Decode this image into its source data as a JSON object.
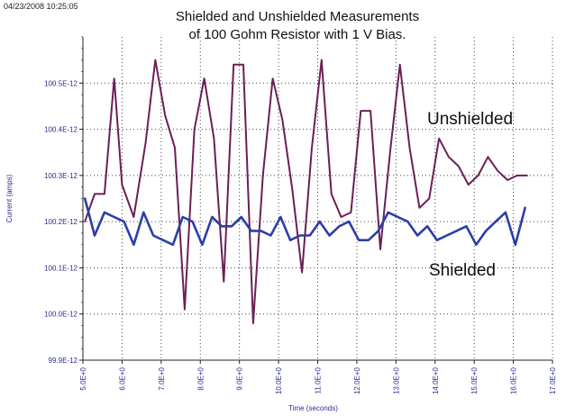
{
  "timestamp": "04/23/2008 10:25:05",
  "title_line1": "Shielded and Unshielded Measurements",
  "title_line2": "of 100 Gohm Resistor with 1 V Bias.",
  "colors": {
    "unshielded": "#6b1f57",
    "shielded": "#2c3ea8",
    "axis_text": "#2a2a90",
    "grid": "#444444"
  },
  "chart_data": {
    "type": "line",
    "title": "Shielded and Unshielded Measurements of 100 Gohm Resistor with 1 V Bias.",
    "xlabel": "Time (seconds)",
    "ylabel": "Current (amps)",
    "xlim": [
      5.0,
      17.0
    ],
    "ylim": [
      9.99e-11,
      1.006e-10
    ],
    "x_ticks": [
      5,
      6,
      7,
      8,
      9,
      10,
      11,
      12,
      13,
      14,
      15,
      16,
      17
    ],
    "x_tick_labels": [
      "5.0E+0",
      "6.0E+0",
      "7.0E+0",
      "8.0E+0",
      "9.0E+0",
      "10.0E+0",
      "11.0E+0",
      "12.0E+0",
      "13.0E+0",
      "14.0E+0",
      "15.0E+0",
      "16.0E+0",
      "17.0E+0"
    ],
    "y_ticks": [
      9.99e-11,
      1e-10,
      1.001e-10,
      1.002e-10,
      1.003e-10,
      1.004e-10,
      1.005e-10
    ],
    "y_tick_labels": [
      "99.9E-12",
      "100.0E-12",
      "100.1E-12",
      "100.2E-12",
      "100.3E-12",
      "100.4E-12",
      "100.5E-12"
    ],
    "grid": true,
    "grid_style": "dotted",
    "series": [
      {
        "name": "Unshielded",
        "color": "#6b1f57",
        "label_position": "upper-right",
        "x": [
          5.05,
          5.3,
          5.55,
          5.8,
          6.0,
          6.3,
          6.6,
          6.85,
          7.1,
          7.35,
          7.6,
          7.85,
          8.1,
          8.35,
          8.6,
          8.85,
          9.1,
          9.35,
          9.6,
          9.85,
          10.1,
          10.35,
          10.6,
          10.85,
          11.1,
          11.35,
          11.6,
          11.85,
          12.1,
          12.35,
          12.6,
          12.85,
          13.1,
          13.35,
          13.6,
          13.85,
          14.1,
          14.35,
          14.6,
          14.85,
          15.1,
          15.35,
          15.6,
          15.85,
          16.1,
          16.35
        ],
        "y": [
          1.002e-10,
          1.0026e-10,
          1.0026e-10,
          1.0051e-10,
          1.0028e-10,
          1.0021e-10,
          1.0037e-10,
          1.0055e-10,
          1.0043e-10,
          1.0036e-10,
          1.0001e-10,
          1.004e-10,
          1.0051e-10,
          1.0038e-10,
          1.0007e-10,
          1.0054e-10,
          1.0054e-10,
          9.998e-11,
          1.003e-10,
          1.0051e-10,
          1.0042e-10,
          1.0027e-10,
          1.0009e-10,
          1.0036e-10,
          1.0055e-10,
          1.0026e-10,
          1.0021e-10,
          1.0022e-10,
          1.0044e-10,
          1.0044e-10,
          1.0014e-10,
          1.0035e-10,
          1.0054e-10,
          1.0036e-10,
          1.0023e-10,
          1.0025e-10,
          1.0038e-10,
          1.0034e-10,
          1.0032e-10,
          1.0028e-10,
          1.003e-10,
          1.0034e-10,
          1.0031e-10,
          1.0029e-10,
          1.003e-10,
          1.003e-10
        ]
      },
      {
        "name": "Shielded",
        "color": "#2c3ea8",
        "label_position": "lower-right",
        "x": [
          5.05,
          5.3,
          5.55,
          5.8,
          6.05,
          6.3,
          6.55,
          6.8,
          7.05,
          7.3,
          7.55,
          7.8,
          8.05,
          8.3,
          8.55,
          8.8,
          9.05,
          9.3,
          9.55,
          9.8,
          10.05,
          10.3,
          10.55,
          10.8,
          11.05,
          11.3,
          11.55,
          11.8,
          12.05,
          12.3,
          12.55,
          12.8,
          13.05,
          13.3,
          13.55,
          13.8,
          14.05,
          14.3,
          14.55,
          14.8,
          15.05,
          15.3,
          15.55,
          15.8,
          16.05,
          16.3
        ],
        "y": [
          1.0025e-10,
          1.0017e-10,
          1.0022e-10,
          1.0021e-10,
          1.002e-10,
          1.0015e-10,
          1.0022e-10,
          1.0017e-10,
          1.0016e-10,
          1.0015e-10,
          1.0021e-10,
          1.002e-10,
          1.0015e-10,
          1.0021e-10,
          1.0019e-10,
          1.0019e-10,
          1.0021e-10,
          1.0018e-10,
          1.0018e-10,
          1.0017e-10,
          1.0021e-10,
          1.0016e-10,
          1.0017e-10,
          1.0017e-10,
          1.002e-10,
          1.0017e-10,
          1.0019e-10,
          1.002e-10,
          1.0016e-10,
          1.0016e-10,
          1.0018e-10,
          1.0022e-10,
          1.0021e-10,
          1.002e-10,
          1.0017e-10,
          1.0019e-10,
          1.0016e-10,
          1.0017e-10,
          1.0018e-10,
          1.0019e-10,
          1.0015e-10,
          1.0018e-10,
          1.002e-10,
          1.0022e-10,
          1.0015e-10,
          1.0023e-10
        ]
      }
    ]
  }
}
